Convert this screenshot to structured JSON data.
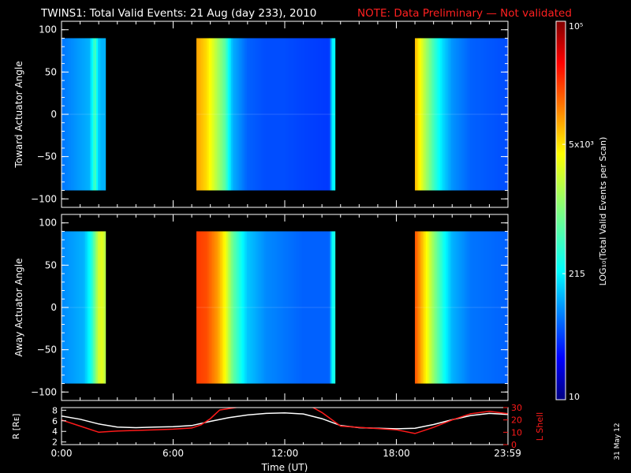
{
  "title": "TWINS1: Total Valid Events: 21 Aug (day 233), 2010",
  "note": "NOTE: Data Preliminary — Not validated",
  "side_date": "31 May 12",
  "colors": {
    "background": "#000000",
    "foreground": "#ffffff",
    "note": "#ff2020",
    "lshell": "#ff1a1a",
    "data_gap": "#000000"
  },
  "chart_data": [
    {
      "id": "toward",
      "type": "heatmap",
      "ylabel": "Toward Actuator Angle",
      "xlim": [
        0,
        24
      ],
      "ylim": [
        -110,
        110
      ],
      "yticks": [
        100,
        50,
        0,
        -50,
        -100
      ],
      "ytick_labels": [
        "100",
        "50",
        "0",
        "−50",
        "−100"
      ],
      "angle_range": [
        -90,
        90
      ],
      "segments": [
        {
          "start": 0.0,
          "end": 2.35,
          "profile": [
            [
              0.0,
              0.24
            ],
            [
              1.5,
              0.3
            ],
            [
              1.8,
              0.45
            ],
            [
              2.0,
              0.32
            ],
            [
              2.2,
              0.3
            ],
            [
              2.35,
              0.3
            ]
          ]
        },
        {
          "start": 7.25,
          "end": 14.7,
          "profile": [
            [
              7.25,
              0.72
            ],
            [
              7.8,
              0.66
            ],
            [
              8.4,
              0.54
            ],
            [
              8.8,
              0.46
            ],
            [
              9.2,
              0.3
            ],
            [
              10.0,
              0.22
            ],
            [
              11.0,
              0.2
            ],
            [
              12.0,
              0.2
            ],
            [
              13.0,
              0.19
            ],
            [
              14.4,
              0.18
            ],
            [
              14.55,
              0.36
            ],
            [
              14.7,
              0.38
            ]
          ]
        },
        {
          "start": 19.0,
          "end": 24.0,
          "profile": [
            [
              19.0,
              0.7
            ],
            [
              19.5,
              0.56
            ],
            [
              20.0,
              0.44
            ],
            [
              20.5,
              0.34
            ],
            [
              21.0,
              0.27
            ],
            [
              22.0,
              0.22
            ],
            [
              24.0,
              0.2
            ]
          ]
        }
      ]
    },
    {
      "id": "away",
      "type": "heatmap",
      "ylabel": "Away Actuator Angle",
      "xlim": [
        0,
        24
      ],
      "ylim": [
        -110,
        110
      ],
      "yticks": [
        100,
        50,
        0,
        -50,
        -100
      ],
      "ytick_labels": [
        "100",
        "50",
        "0",
        "−50",
        "−100"
      ],
      "angle_range": [
        -90,
        90
      ],
      "segments": [
        {
          "start": 0.0,
          "end": 2.35,
          "profile": [
            [
              0.0,
              0.26
            ],
            [
              1.2,
              0.3
            ],
            [
              1.6,
              0.4
            ],
            [
              2.0,
              0.58
            ],
            [
              2.2,
              0.6
            ],
            [
              2.35,
              0.55
            ]
          ]
        },
        {
          "start": 7.25,
          "end": 14.7,
          "profile": [
            [
              7.25,
              0.82
            ],
            [
              7.8,
              0.8
            ],
            [
              8.4,
              0.72
            ],
            [
              8.8,
              0.62
            ],
            [
              9.2,
              0.48
            ],
            [
              10.0,
              0.32
            ],
            [
              11.0,
              0.26
            ],
            [
              12.0,
              0.24
            ],
            [
              13.0,
              0.22
            ],
            [
              14.4,
              0.22
            ],
            [
              14.55,
              0.38
            ],
            [
              14.7,
              0.4
            ]
          ]
        },
        {
          "start": 19.0,
          "end": 24.0,
          "profile": [
            [
              19.0,
              0.8
            ],
            [
              19.5,
              0.66
            ],
            [
              20.0,
              0.52
            ],
            [
              20.5,
              0.4
            ],
            [
              21.0,
              0.3
            ],
            [
              22.0,
              0.24
            ],
            [
              24.0,
              0.22
            ]
          ]
        }
      ]
    },
    {
      "id": "orbit",
      "type": "line",
      "xlabel": "Time (UT)",
      "ylabel": "R [Rᴇ]",
      "y2label": "L Shell",
      "xlim": [
        0,
        24
      ],
      "ylim": [
        1.5,
        8.5
      ],
      "yticks": [
        2,
        4,
        6,
        8
      ],
      "ytick_labels": [
        "2",
        "4",
        "6",
        "8"
      ],
      "y2lim": [
        0,
        30
      ],
      "y2ticks": [
        0,
        10,
        20,
        30
      ],
      "y2tick_labels": [
        "0",
        "10",
        "20",
        "30"
      ],
      "xticks": [
        0,
        6,
        12,
        18,
        23.983
      ],
      "xtick_labels": [
        "0:00",
        "6:00",
        "12:00",
        "18:00",
        "23:59"
      ],
      "series": [
        {
          "id": "r",
          "axis": "left",
          "color": "#ffffff",
          "x": [
            0,
            1,
            2,
            3,
            4,
            5,
            6,
            7,
            8,
            9,
            10,
            11,
            12,
            13,
            14,
            15,
            16,
            17,
            18,
            19,
            20,
            21,
            22,
            23,
            24
          ],
          "y": [
            6.9,
            6.3,
            5.4,
            4.8,
            4.7,
            4.8,
            4.9,
            5.1,
            5.9,
            6.6,
            7.1,
            7.4,
            7.5,
            7.3,
            6.4,
            5.1,
            4.7,
            4.6,
            4.5,
            4.6,
            5.3,
            6.2,
            7.0,
            7.4,
            7.2
          ]
        },
        {
          "id": "lshell",
          "axis": "right",
          "color": "#ff1a1a",
          "x": [
            0,
            1,
            2,
            3,
            4,
            5,
            6,
            7,
            7.5,
            8,
            8.5,
            9.8,
            13.4,
            14,
            15,
            16,
            17,
            18,
            19,
            20,
            21,
            22,
            23,
            24
          ],
          "y": [
            20,
            15,
            10,
            11,
            11.5,
            12,
            12.5,
            13.5,
            16,
            21,
            28,
            31,
            31,
            26,
            15,
            14,
            13,
            12,
            9,
            14,
            20,
            25,
            27,
            25
          ]
        }
      ]
    }
  ],
  "colorbar": {
    "ylabel": "LOG₁₀(Total Valid Events per Scan)",
    "scale": "log",
    "range": [
      10,
      100000
    ],
    "ticks": [
      {
        "value": 100000,
        "label": "10⁵"
      },
      {
        "value": 5000,
        "label": "5x10³"
      },
      {
        "value": 215,
        "label": "215"
      },
      {
        "value": 10,
        "label": "10"
      }
    ]
  }
}
